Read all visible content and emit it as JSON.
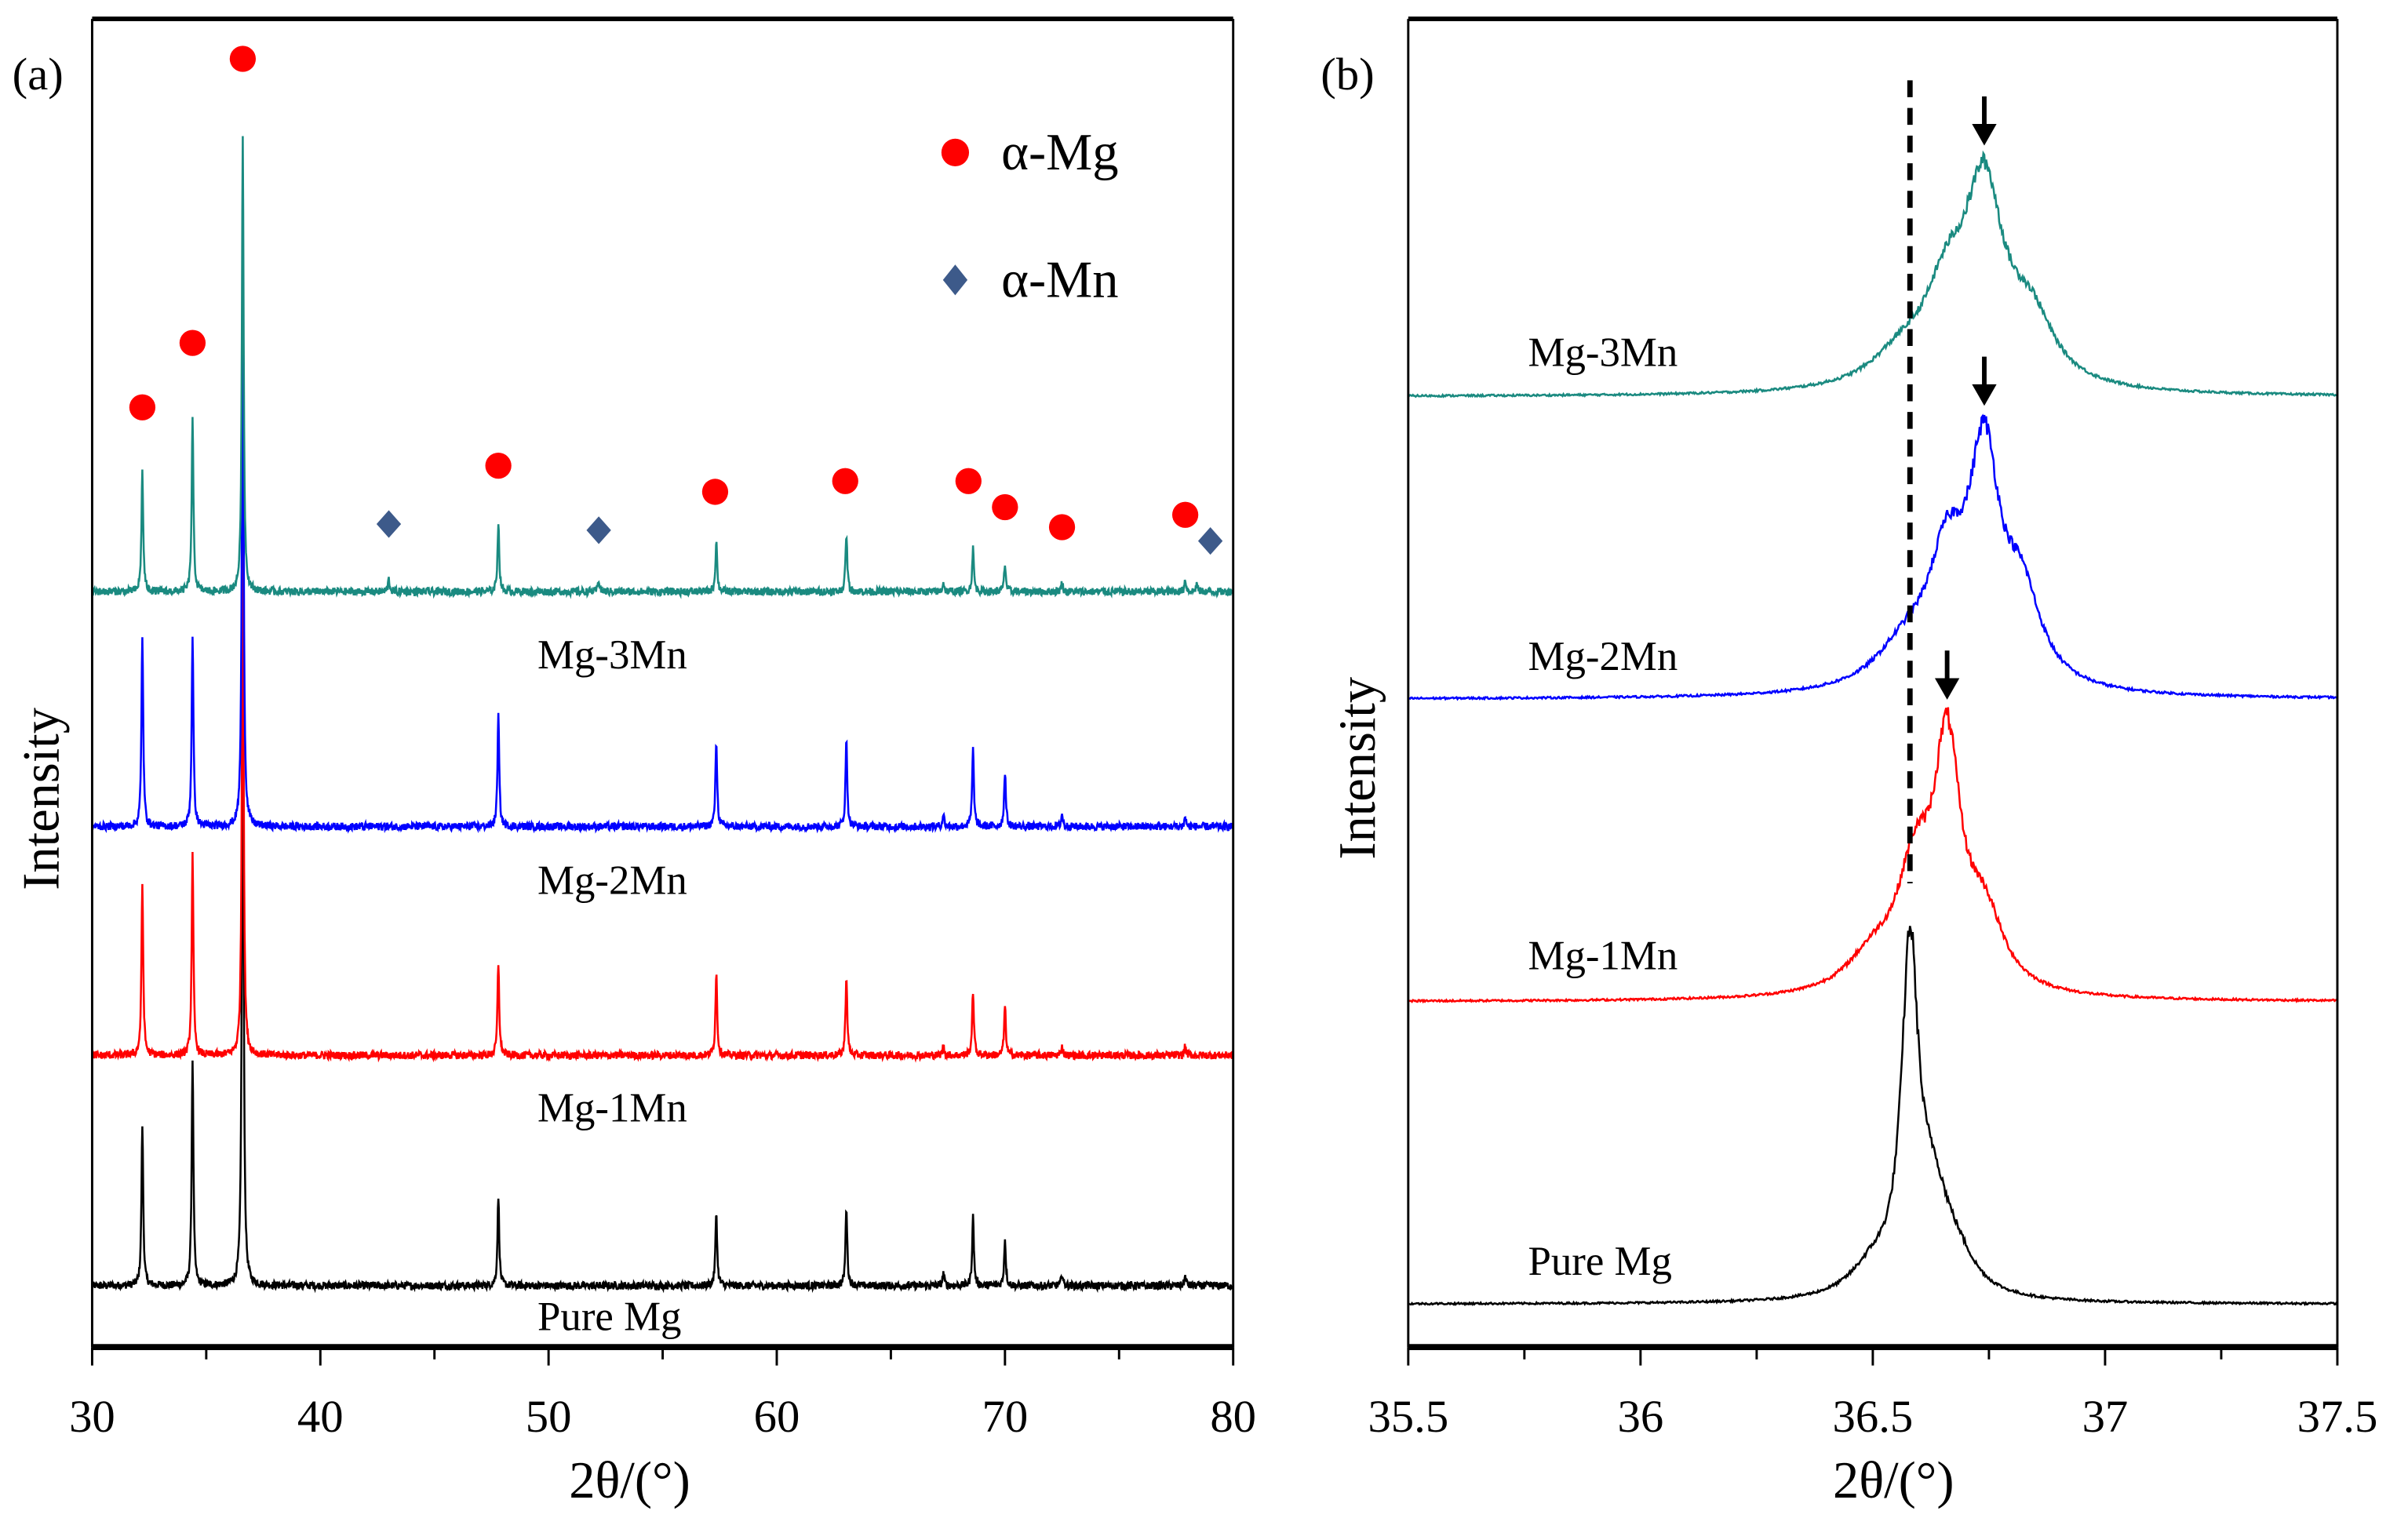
{
  "colors": {
    "pure": "#000000",
    "mn1": "#ff0000",
    "mn2": "#0000ff",
    "mn3": "#1a8a80",
    "mg_marker": "#ff0000",
    "mn_marker": "#3d5a8a"
  },
  "chart_data": [
    {
      "type": "line",
      "panel_label": "(a)",
      "xlabel": "2θ/(°)",
      "ylabel": "Intensity",
      "xlim": [
        30,
        80
      ],
      "ylim": [
        0,
        865
      ],
      "xticks": [
        "30",
        "40",
        "50",
        "60",
        "70",
        "80"
      ],
      "xtick_values": [
        30,
        40,
        50,
        60,
        70,
        80
      ],
      "peak_width": 0.09,
      "series": [
        {
          "name": "Pure Mg",
          "color_key": "pure",
          "offset": 40,
          "peaks": [
            [
              32.2,
              105
            ],
            [
              34.4,
              148
            ],
            [
              36.6,
              420
            ],
            [
              47.8,
              58
            ],
            [
              57.35,
              48
            ],
            [
              63.05,
              52
            ],
            [
              67.3,
              8
            ],
            [
              68.6,
              45
            ],
            [
              70.0,
              30
            ],
            [
              72.5,
              8
            ],
            [
              77.9,
              6
            ]
          ]
        },
        {
          "name": "Mg-1Mn",
          "color_key": "mn1",
          "offset": 190,
          "peaks": [
            [
              32.2,
              112
            ],
            [
              34.4,
              130
            ],
            [
              36.6,
              340
            ],
            [
              47.8,
              60
            ],
            [
              57.35,
              54
            ],
            [
              63.05,
              52
            ],
            [
              67.3,
              6
            ],
            [
              68.6,
              42
            ],
            [
              70.0,
              32
            ],
            [
              72.5,
              6
            ],
            [
              77.9,
              6
            ]
          ]
        },
        {
          "name": "Mg-2Mn",
          "color_key": "mn2",
          "offset": 339,
          "peaks": [
            [
              32.2,
              125
            ],
            [
              34.4,
              125
            ],
            [
              36.6,
              360
            ],
            [
              47.8,
              72
            ],
            [
              57.35,
              56
            ],
            [
              63.05,
              56
            ],
            [
              67.3,
              8
            ],
            [
              68.6,
              50
            ],
            [
              70.0,
              36
            ],
            [
              72.5,
              8
            ],
            [
              77.9,
              6
            ]
          ]
        },
        {
          "name": "Mg-3Mn",
          "color_key": "mn3",
          "offset": 492,
          "peaks": [
            [
              32.2,
              78
            ],
            [
              34.4,
              112
            ],
            [
              36.6,
              297
            ],
            [
              43.0,
              8
            ],
            [
              47.8,
              45
            ],
            [
              52.2,
              8
            ],
            [
              57.35,
              33
            ],
            [
              63.05,
              38
            ],
            [
              67.3,
              6
            ],
            [
              68.6,
              28
            ],
            [
              70.0,
              18
            ],
            [
              72.5,
              6
            ],
            [
              77.9,
              8
            ],
            [
              78.4,
              5
            ]
          ]
        }
      ],
      "markers": {
        "alpha_mg": {
          "label": "α-Mg",
          "points": [
            [
              32.2,
              612
            ],
            [
              34.4,
              654
            ],
            [
              36.6,
              839
            ],
            [
              47.8,
              574
            ],
            [
              57.3,
              557
            ],
            [
              63.0,
              564
            ],
            [
              68.4,
              564
            ],
            [
              70.0,
              547
            ],
            [
              72.5,
              534
            ],
            [
              77.9,
              542
            ]
          ]
        },
        "alpha_mn": {
          "label": "α-Mn",
          "points": [
            [
              43.0,
              536
            ],
            [
              52.2,
              532
            ],
            [
              79.0,
              525
            ]
          ]
        }
      },
      "legend": {
        "placement": "top-right",
        "entries": [
          "α-Mg",
          "α-Mn"
        ]
      }
    },
    {
      "type": "line",
      "panel_label": "(b)",
      "xlabel": "2θ/(°)",
      "ylabel": "Intensity",
      "xlim": [
        35.5,
        37.5
      ],
      "ylim": [
        0,
        865
      ],
      "xticks": [
        "35.5",
        "36",
        "36.5",
        "37",
        "37.5"
      ],
      "xtick_values": [
        35.5,
        36.0,
        36.5,
        37.0,
        37.5
      ],
      "reference_line_x": 36.58,
      "series": [
        {
          "name": "Pure Mg",
          "color_key": "pure",
          "offset": 28,
          "peak_position": 36.58,
          "components": [
            [
              36.58,
              215,
              0.022
            ],
            [
              36.63,
              55,
              0.04
            ],
            [
              36.5,
              18,
              0.06
            ],
            [
              36.68,
              20,
              0.05
            ]
          ]
        },
        {
          "name": "Mg-1Mn",
          "color_key": "mn1",
          "offset": 225,
          "peak_position": 36.66,
          "components": [
            [
              36.66,
              150,
              0.035
            ],
            [
              36.59,
              70,
              0.045
            ],
            [
              36.74,
              45,
              0.05
            ],
            [
              36.5,
              22,
              0.07
            ]
          ]
        },
        {
          "name": "Mg-2Mn",
          "color_key": "mn2",
          "offset": 422,
          "peak_position": 36.74,
          "components": [
            [
              36.74,
              140,
              0.04
            ],
            [
              36.66,
              75,
              0.05
            ],
            [
              36.82,
              55,
              0.05
            ],
            [
              36.57,
              25,
              0.08
            ]
          ]
        },
        {
          "name": "Mg-3Mn",
          "color_key": "mn3",
          "offset": 619,
          "peak_position": 36.74,
          "components": [
            [
              36.74,
              120,
              0.05
            ],
            [
              36.66,
              55,
              0.06
            ],
            [
              36.84,
              40,
              0.06
            ],
            [
              36.56,
              18,
              0.08
            ]
          ]
        }
      ]
    }
  ]
}
